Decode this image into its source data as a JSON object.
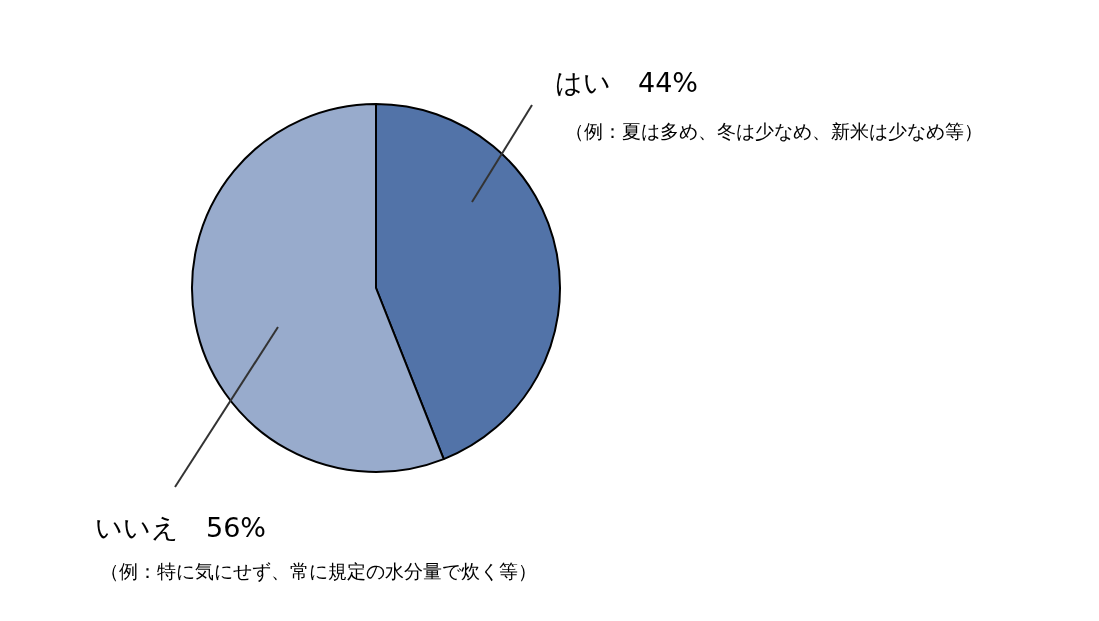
{
  "chart_data": {
    "type": "pie",
    "categories": [
      "はい",
      "いいえ"
    ],
    "values": [
      44,
      56
    ],
    "colors": [
      "#5273a8",
      "#98abcc"
    ],
    "value_labels": [
      "44%",
      "56%"
    ],
    "legend": false,
    "annotations": [
      "（例：夏は多め、冬は少なめ、新米は少なめ等）",
      "（例：特に気にせず、常に規定の水分量で炊く等）"
    ]
  }
}
